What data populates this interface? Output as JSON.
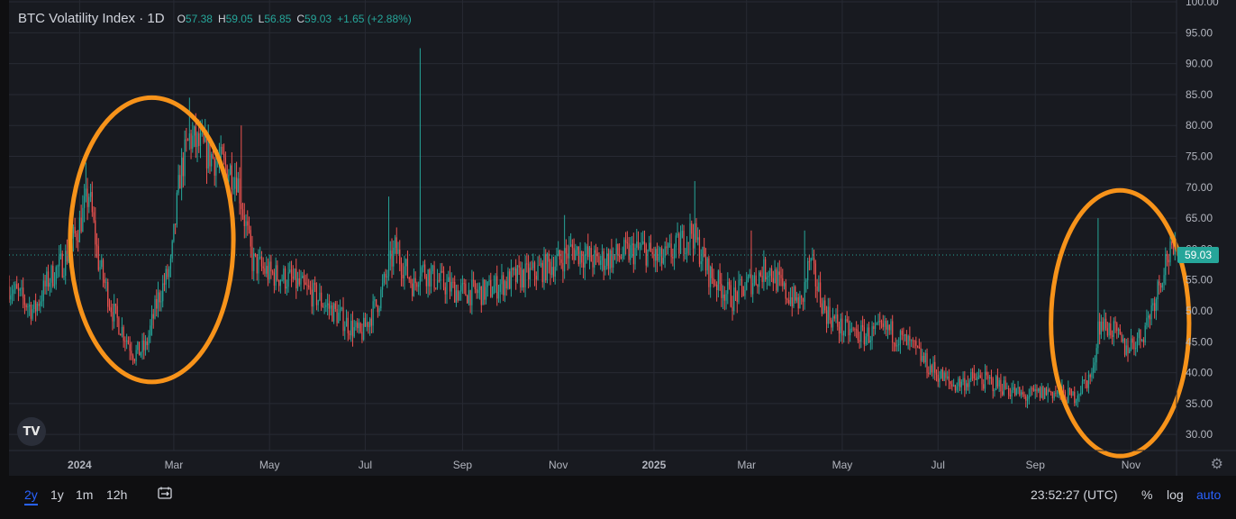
{
  "header": {
    "title": "BTC Volatility Index · 1D",
    "open_label": "O",
    "open_value": "57.38",
    "high_label": "H",
    "high_value": "59.05",
    "low_label": "L",
    "low_value": "56.85",
    "close_label": "C",
    "close_value": "59.03",
    "change": "+1.65 (+2.88%)"
  },
  "colors": {
    "up": "#26a69a",
    "down": "#ef5350",
    "annotation": "#f7931a",
    "background": "#181a20",
    "grid": "#272a33"
  },
  "price_tag": "59.03",
  "logo_icon": "tradingview-logo-icon",
  "toolbar": {
    "ranges": [
      "2y",
      "1y",
      "1m",
      "12h"
    ],
    "active_range": "2y",
    "time": "23:52:27 (UTC)",
    "percent_label": "%",
    "log_label": "log",
    "auto_label": "auto"
  },
  "chart_data": {
    "type": "candlestick",
    "title": "BTC Volatility Index · 1D",
    "interval": "1D",
    "x_range": [
      "2023-11-17",
      "2025-11-30"
    ],
    "y_range": [
      27.4,
      100.3
    ],
    "y_ticks": [
      "30.00",
      "35.00",
      "40.00",
      "45.00",
      "50.00",
      "55.00",
      "60.00",
      "65.00",
      "70.00",
      "75.00",
      "80.00",
      "85.00",
      "90.00",
      "95.00",
      "100.00"
    ],
    "x_ticks": [
      {
        "date": "2024-01-01",
        "label": "2024",
        "bold": true
      },
      {
        "date": "2024-03-01",
        "label": "Mar"
      },
      {
        "date": "2024-05-01",
        "label": "May"
      },
      {
        "date": "2024-07-01",
        "label": "Jul"
      },
      {
        "date": "2024-09-01",
        "label": "Sep"
      },
      {
        "date": "2024-11-01",
        "label": "Nov"
      },
      {
        "date": "2025-01-01",
        "label": "2025",
        "bold": true
      },
      {
        "date": "2025-03-01",
        "label": "Mar"
      },
      {
        "date": "2025-05-01",
        "label": "May"
      },
      {
        "date": "2025-07-01",
        "label": "Jul"
      },
      {
        "date": "2025-09-01",
        "label": "Sep"
      },
      {
        "date": "2025-11-01",
        "label": "Nov"
      }
    ],
    "close_path": [
      [
        "2023-11-17",
        54
      ],
      [
        "2023-11-25",
        52
      ],
      [
        "2023-12-03",
        50
      ],
      [
        "2023-12-12",
        55
      ],
      [
        "2023-12-22",
        58
      ],
      [
        "2024-01-01",
        64
      ],
      [
        "2024-01-07",
        69
      ],
      [
        "2024-01-13",
        58
      ],
      [
        "2024-01-22",
        50
      ],
      [
        "2024-01-30",
        46
      ],
      [
        "2024-02-05",
        43
      ],
      [
        "2024-02-12",
        44
      ],
      [
        "2024-02-20",
        52
      ],
      [
        "2024-02-28",
        57
      ],
      [
        "2024-03-05",
        72
      ],
      [
        "2024-03-11",
        78
      ],
      [
        "2024-03-20",
        76
      ],
      [
        "2024-03-30",
        74
      ],
      [
        "2024-04-10",
        72
      ],
      [
        "2024-04-20",
        58
      ],
      [
        "2024-05-01",
        56
      ],
      [
        "2024-05-15",
        55
      ],
      [
        "2024-06-01",
        52
      ],
      [
        "2024-06-15",
        49
      ],
      [
        "2024-06-28",
        46
      ],
      [
        "2024-07-10",
        52
      ],
      [
        "2024-07-20",
        60
      ],
      [
        "2024-08-01",
        54
      ],
      [
        "2024-08-05",
        57
      ],
      [
        "2024-08-15",
        55
      ],
      [
        "2024-08-30",
        53
      ],
      [
        "2024-09-15",
        53
      ],
      [
        "2024-10-01",
        55
      ],
      [
        "2024-10-15",
        56
      ],
      [
        "2024-11-01",
        58
      ],
      [
        "2024-11-10",
        60
      ],
      [
        "2024-11-25",
        58
      ],
      [
        "2024-12-10",
        59
      ],
      [
        "2024-12-25",
        60
      ],
      [
        "2025-01-05",
        58
      ],
      [
        "2025-01-15",
        60
      ],
      [
        "2025-01-25",
        63
      ],
      [
        "2025-02-05",
        56
      ],
      [
        "2025-02-20",
        52
      ],
      [
        "2025-03-05",
        55
      ],
      [
        "2025-03-15",
        57
      ],
      [
        "2025-03-25",
        53
      ],
      [
        "2025-04-05",
        51
      ],
      [
        "2025-04-10",
        58
      ],
      [
        "2025-04-20",
        50
      ],
      [
        "2025-05-01",
        47
      ],
      [
        "2025-05-15",
        46
      ],
      [
        "2025-05-30",
        47
      ],
      [
        "2025-06-15",
        44
      ],
      [
        "2025-06-25",
        41
      ],
      [
        "2025-07-10",
        38
      ],
      [
        "2025-07-25",
        39
      ],
      [
        "2025-08-10",
        38
      ],
      [
        "2025-08-25",
        36
      ],
      [
        "2025-09-10",
        37
      ],
      [
        "2025-09-25",
        36
      ],
      [
        "2025-10-08",
        40
      ],
      [
        "2025-10-11",
        48
      ],
      [
        "2025-10-20",
        47
      ],
      [
        "2025-10-28",
        44
      ],
      [
        "2025-11-08",
        46
      ],
      [
        "2025-11-16",
        52
      ],
      [
        "2025-11-24",
        59
      ]
    ],
    "spikes": [
      {
        "date": "2024-08-05",
        "high": 92.5
      },
      {
        "date": "2024-03-11",
        "high": 84.5
      },
      {
        "date": "2024-01-05",
        "high": 74
      },
      {
        "date": "2024-07-16",
        "high": 68.5
      },
      {
        "date": "2025-01-27",
        "high": 71
      },
      {
        "date": "2025-10-11",
        "high": 65
      },
      {
        "date": "2025-04-07",
        "high": 63
      },
      {
        "date": "2024-11-05",
        "high": 65.5
      },
      {
        "date": "2025-03-04",
        "high": 63
      },
      {
        "date": "2024-04-13",
        "high": 80
      }
    ],
    "last_close": 59.03,
    "annotations": [
      {
        "type": "ellipse",
        "center": [
          "2024-02-16",
          61.5
        ],
        "radius_days": 52,
        "radius_value": 23
      },
      {
        "type": "ellipse",
        "center": [
          "2025-10-25",
          48
        ],
        "radius_days": 44,
        "radius_value": 21.5
      }
    ]
  }
}
